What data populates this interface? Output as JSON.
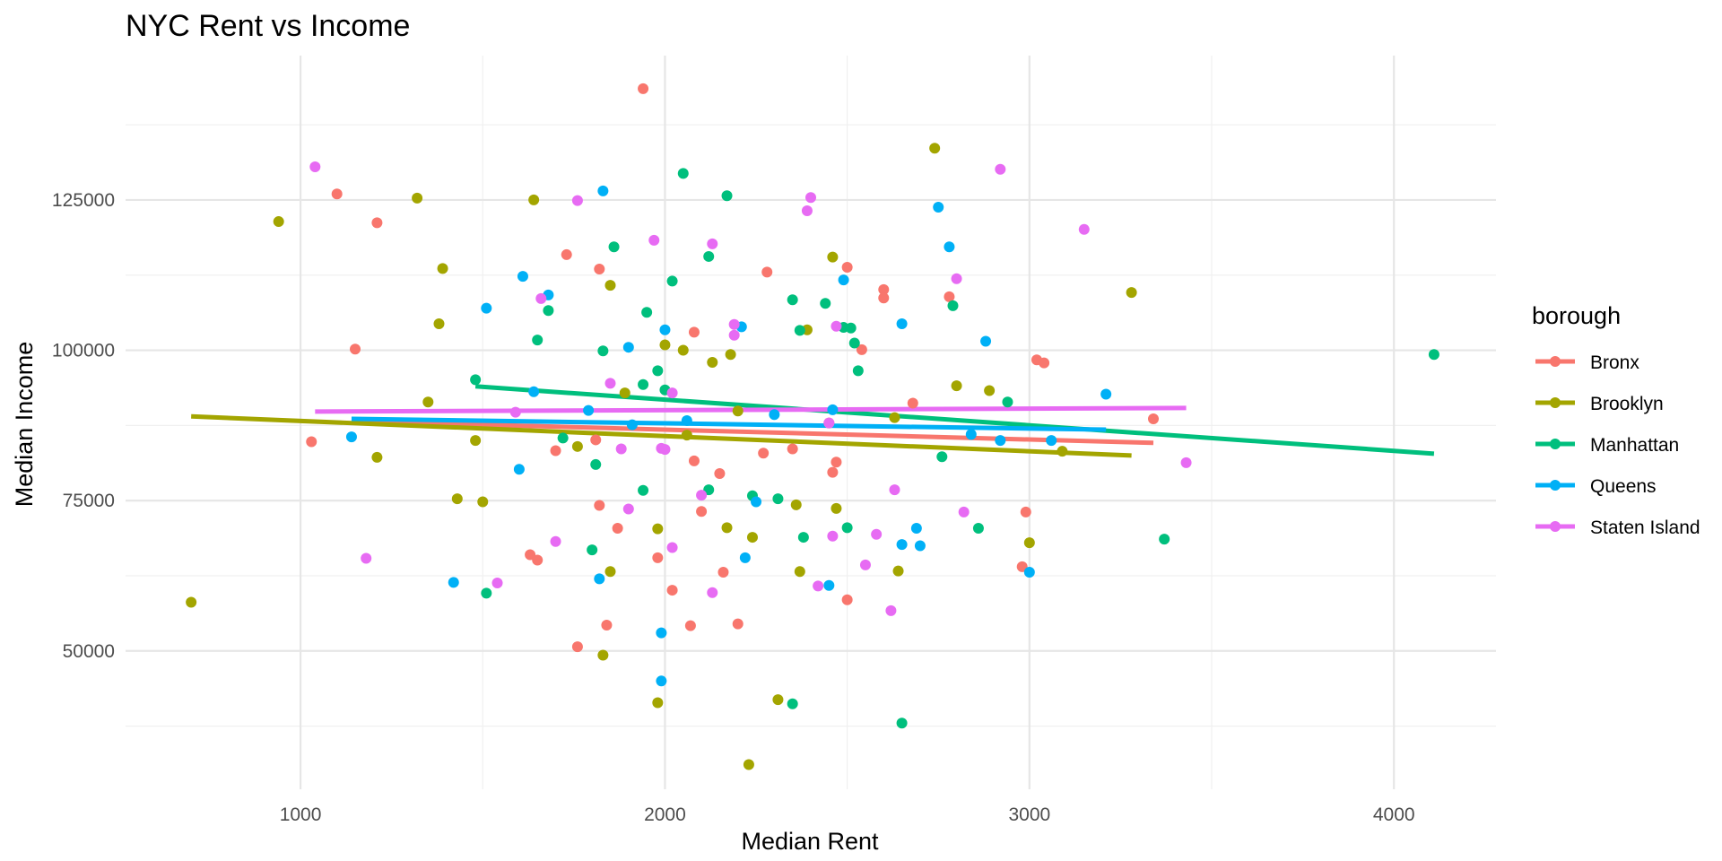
{
  "chart_data": {
    "type": "scatter",
    "title": "NYC Rent vs Income",
    "xlabel": "Median Rent",
    "ylabel": "Median Income",
    "xlim": [
      520,
      4280
    ],
    "ylim": [
      27000,
      149000
    ],
    "x_ticks": [
      1000,
      2000,
      3000,
      4000
    ],
    "y_ticks": [
      50000,
      75000,
      100000,
      125000
    ],
    "grid": true,
    "legend": {
      "title": "borough",
      "placement": "right"
    },
    "series": [
      {
        "name": "Bronx",
        "color": "#F8766D",
        "points": [
          [
            1940,
            143500
          ],
          [
            1100,
            126000
          ],
          [
            1210,
            121200
          ],
          [
            1730,
            115900
          ],
          [
            1820,
            113500
          ],
          [
            2280,
            113000
          ],
          [
            2500,
            113800
          ],
          [
            2600,
            110100
          ],
          [
            2600,
            108700
          ],
          [
            2780,
            108900
          ],
          [
            1150,
            100200
          ],
          [
            2080,
            103000
          ],
          [
            2540,
            100100
          ],
          [
            3020,
            98400
          ],
          [
            3040,
            97900
          ],
          [
            2680,
            91200
          ],
          [
            2450,
            87900
          ],
          [
            1030,
            84800
          ],
          [
            1810,
            85100
          ],
          [
            2350,
            83600
          ],
          [
            1700,
            83300
          ],
          [
            2270,
            82900
          ],
          [
            2080,
            81600
          ],
          [
            2470,
            81400
          ],
          [
            2460,
            79700
          ],
          [
            2150,
            79500
          ],
          [
            3340,
            88600
          ],
          [
            1820,
            74200
          ],
          [
            2100,
            73200
          ],
          [
            2990,
            73100
          ],
          [
            1870,
            70400
          ],
          [
            1630,
            66000
          ],
          [
            1650,
            65100
          ],
          [
            1980,
            65500
          ],
          [
            2160,
            63100
          ],
          [
            2980,
            64000
          ],
          [
            2020,
            60100
          ],
          [
            2500,
            58500
          ],
          [
            1840,
            54300
          ],
          [
            2070,
            54200
          ],
          [
            2200,
            54500
          ],
          [
            1760,
            50700
          ]
        ],
        "trend": [
          [
            3340,
            84600
          ],
          [
            1150,
            88200
          ]
        ]
      },
      {
        "name": "Brooklyn",
        "color": "#A3A500",
        "points": [
          [
            940,
            121400
          ],
          [
            1320,
            125300
          ],
          [
            1640,
            125000
          ],
          [
            2740,
            133600
          ],
          [
            1390,
            113600
          ],
          [
            1850,
            110800
          ],
          [
            2460,
            115500
          ],
          [
            3280,
            109600
          ],
          [
            1380,
            104400
          ],
          [
            2390,
            103400
          ],
          [
            2180,
            99300
          ],
          [
            2050,
            100000
          ],
          [
            2000,
            100900
          ],
          [
            2130,
            98000
          ],
          [
            1890,
            92900
          ],
          [
            2800,
            94100
          ],
          [
            2890,
            93300
          ],
          [
            1350,
            91400
          ],
          [
            2200,
            89900
          ],
          [
            1480,
            85000
          ],
          [
            1760,
            84000
          ],
          [
            2060,
            85900
          ],
          [
            2630,
            88800
          ],
          [
            3090,
            83200
          ],
          [
            1210,
            82200
          ],
          [
            1430,
            75300
          ],
          [
            1500,
            74800
          ],
          [
            2360,
            74300
          ],
          [
            2470,
            73700
          ],
          [
            2170,
            70500
          ],
          [
            1980,
            70300
          ],
          [
            2240,
            68900
          ],
          [
            3000,
            68000
          ],
          [
            2370,
            63200
          ],
          [
            2640,
            63300
          ],
          [
            1850,
            63200
          ],
          [
            700,
            58100
          ],
          [
            1830,
            49300
          ],
          [
            1980,
            41400
          ],
          [
            2310,
            41900
          ],
          [
            2230,
            31100
          ]
        ],
        "trend": [
          [
            700,
            89000
          ],
          [
            3280,
            82500
          ]
        ]
      },
      {
        "name": "Manhattan",
        "color": "#00BF7D",
        "points": [
          [
            2050,
            129400
          ],
          [
            2170,
            125700
          ],
          [
            1860,
            117200
          ],
          [
            2120,
            115600
          ],
          [
            2020,
            111500
          ],
          [
            1680,
            106600
          ],
          [
            1950,
            106300
          ],
          [
            2350,
            108400
          ],
          [
            2440,
            107800
          ],
          [
            2790,
            107400
          ],
          [
            1650,
            101700
          ],
          [
            1830,
            99900
          ],
          [
            2370,
            103300
          ],
          [
            2490,
            103800
          ],
          [
            2510,
            103700
          ],
          [
            2520,
            101200
          ],
          [
            1480,
            95100
          ],
          [
            1940,
            94300
          ],
          [
            1980,
            96600
          ],
          [
            2000,
            93400
          ],
          [
            2530,
            96600
          ],
          [
            2940,
            91400
          ],
          [
            4110,
            99300
          ],
          [
            1720,
            85400
          ],
          [
            1810,
            81000
          ],
          [
            2760,
            82300
          ],
          [
            1940,
            76700
          ],
          [
            2120,
            76800
          ],
          [
            2240,
            75800
          ],
          [
            2310,
            75300
          ],
          [
            2500,
            70500
          ],
          [
            2860,
            70400
          ],
          [
            2380,
            68900
          ],
          [
            1800,
            66800
          ],
          [
            1510,
            59600
          ],
          [
            3370,
            68600
          ],
          [
            2350,
            41200
          ],
          [
            2650,
            38000
          ]
        ],
        "trend": [
          [
            1480,
            94000
          ],
          [
            4110,
            82800
          ]
        ]
      },
      {
        "name": "Queens",
        "color": "#00B0F6",
        "points": [
          [
            1830,
            126500
          ],
          [
            2750,
            123800
          ],
          [
            2780,
            117200
          ],
          [
            1610,
            112300
          ],
          [
            1680,
            109200
          ],
          [
            2490,
            111700
          ],
          [
            1510,
            107000
          ],
          [
            2000,
            103400
          ],
          [
            2210,
            103900
          ],
          [
            2650,
            104400
          ],
          [
            2880,
            101500
          ],
          [
            1900,
            100500
          ],
          [
            1640,
            93100
          ],
          [
            3210,
            92700
          ],
          [
            2460,
            90100
          ],
          [
            2300,
            89300
          ],
          [
            2060,
            88300
          ],
          [
            1790,
            90000
          ],
          [
            1910,
            87600
          ],
          [
            2840,
            86000
          ],
          [
            2920,
            85000
          ],
          [
            3060,
            85000
          ],
          [
            1140,
            85600
          ],
          [
            1600,
            80200
          ],
          [
            2250,
            74800
          ],
          [
            2690,
            70400
          ],
          [
            2650,
            67700
          ],
          [
            2700,
            67500
          ],
          [
            2220,
            65500
          ],
          [
            1420,
            61400
          ],
          [
            1820,
            62000
          ],
          [
            2450,
            60900
          ],
          [
            3000,
            63100
          ],
          [
            1990,
            53000
          ],
          [
            1990,
            45000
          ]
        ],
        "trend": [
          [
            1140,
            88600
          ],
          [
            3210,
            86800
          ]
        ]
      },
      {
        "name": "Staten Island",
        "color": "#E76BF3",
        "points": [
          [
            1040,
            130500
          ],
          [
            2920,
            130100
          ],
          [
            1760,
            124900
          ],
          [
            2400,
            125400
          ],
          [
            2390,
            123200
          ],
          [
            3150,
            120100
          ],
          [
            1970,
            118300
          ],
          [
            2130,
            117700
          ],
          [
            2800,
            111900
          ],
          [
            1660,
            108600
          ],
          [
            2190,
            104300
          ],
          [
            2190,
            102500
          ],
          [
            2470,
            104000
          ],
          [
            2020,
            92900
          ],
          [
            1850,
            94500
          ],
          [
            1590,
            89700
          ],
          [
            2450,
            87900
          ],
          [
            1990,
            83700
          ],
          [
            2000,
            83500
          ],
          [
            1880,
            83600
          ],
          [
            3430,
            81300
          ],
          [
            2630,
            76800
          ],
          [
            2100,
            75900
          ],
          [
            1900,
            73600
          ],
          [
            2820,
            73100
          ],
          [
            2580,
            69400
          ],
          [
            2460,
            69100
          ],
          [
            1700,
            68200
          ],
          [
            2020,
            67200
          ],
          [
            1180,
            65400
          ],
          [
            2550,
            64300
          ],
          [
            1540,
            61300
          ],
          [
            2420,
            60800
          ],
          [
            2130,
            59700
          ],
          [
            2620,
            56700
          ]
        ],
        "trend": [
          [
            1040,
            89800
          ],
          [
            3430,
            90400
          ]
        ]
      }
    ]
  }
}
